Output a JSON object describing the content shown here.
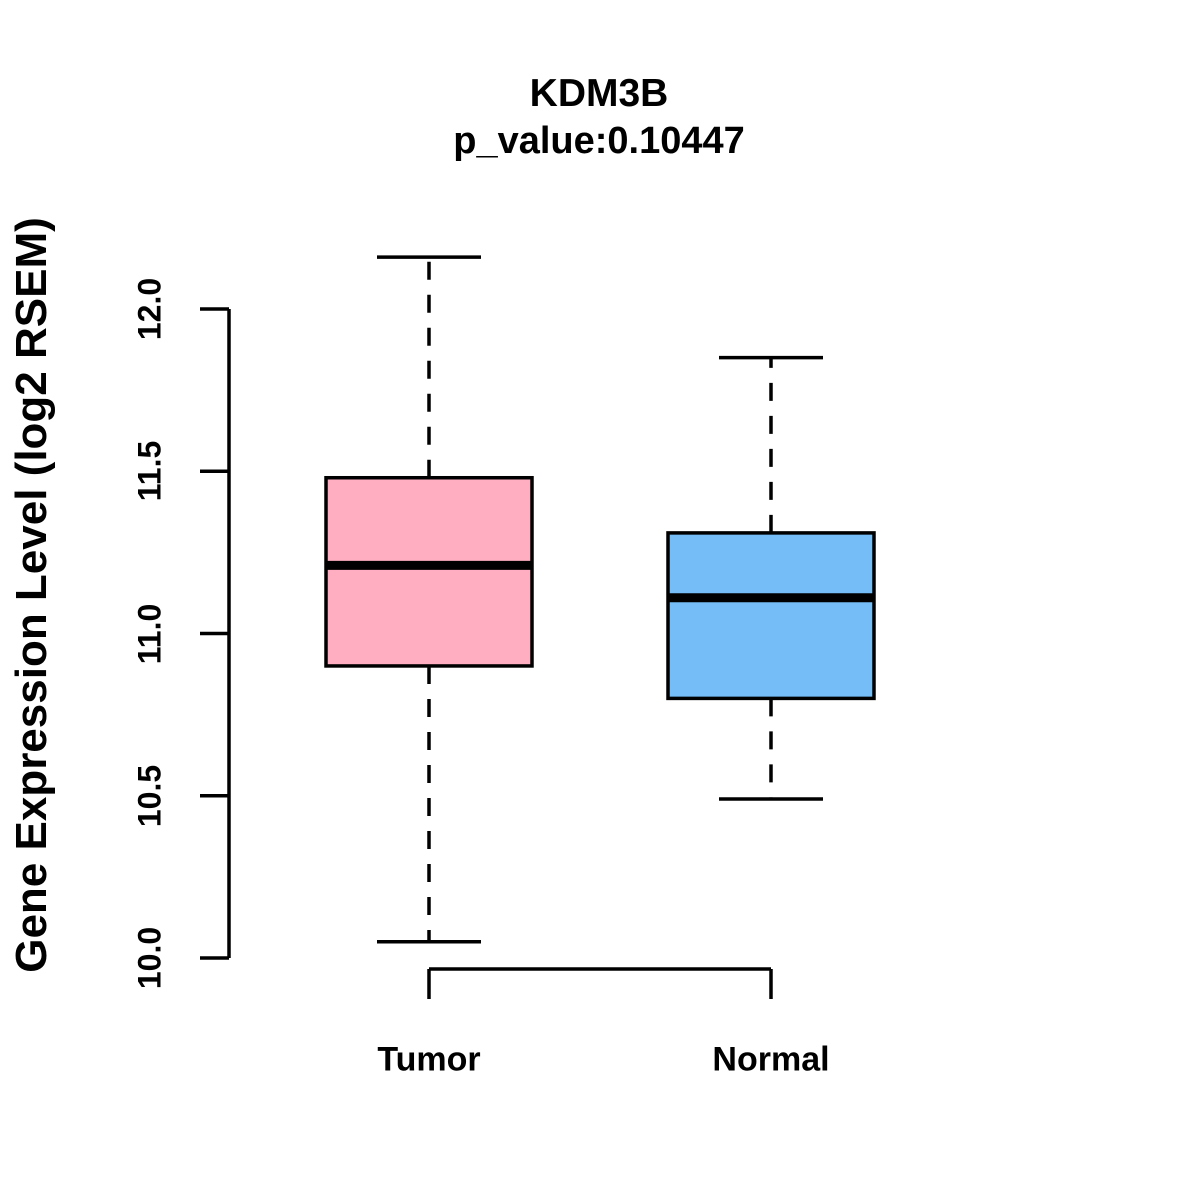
{
  "title": "KDM3B",
  "subtitle": "p_value:0.10447",
  "y_axis_title": "Gene Expression Level (log2 RSEM)",
  "colors": {
    "tumor_fill": "#FFAEC1",
    "normal_fill": "#74BDF6",
    "stroke": "#000000",
    "background": "#FFFFFF"
  },
  "chart_data": {
    "type": "boxplot",
    "title": "KDM3B",
    "subtitle": "p_value:0.10447",
    "xlabel": "",
    "ylabel": "Gene Expression Level (log2 RSEM)",
    "categories": [
      "Tumor",
      "Normal"
    ],
    "series": [
      {
        "name": "Tumor",
        "color": "#FFAEC1",
        "whisker_low": 10.05,
        "q1": 10.9,
        "median": 11.21,
        "q3": 11.48,
        "whisker_high": 12.16,
        "outliers": []
      },
      {
        "name": "Normal",
        "color": "#74BDF6",
        "whisker_low": 10.49,
        "q1": 10.8,
        "median": 11.11,
        "q3": 11.31,
        "whisker_high": 11.85,
        "outliers": []
      }
    ],
    "y_ticks": [
      10.0,
      10.5,
      11.0,
      11.5,
      12.0
    ],
    "y_tick_labels": [
      "10.0",
      "10.5",
      "11.0",
      "11.5",
      "12.0"
    ],
    "ylim": [
      10.0,
      12.0
    ],
    "grid": false,
    "legend": "none"
  }
}
